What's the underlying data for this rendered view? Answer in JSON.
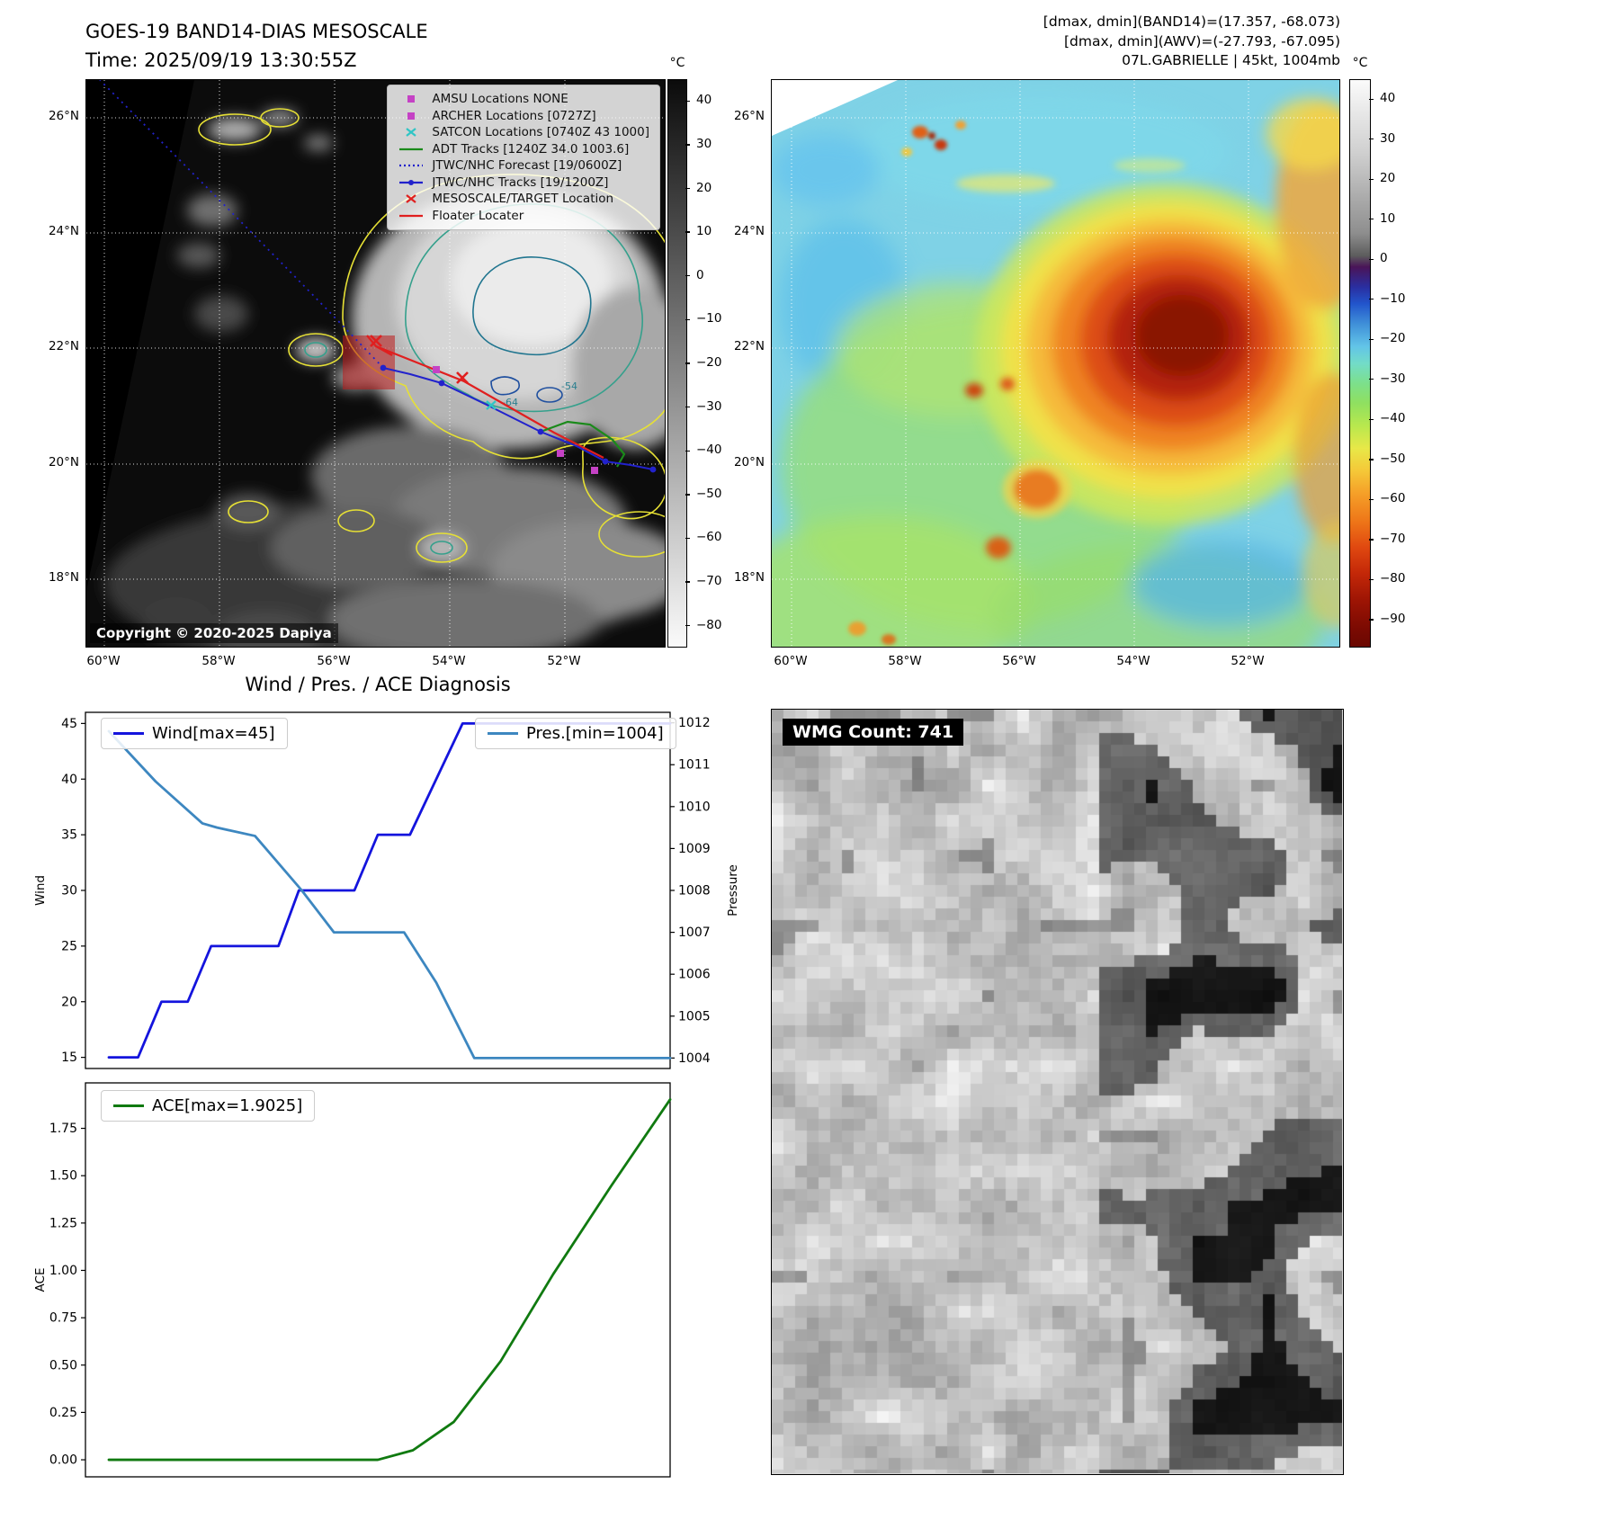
{
  "band14_panel": {
    "title": "GOES-19 BAND14-DIAS MESOSCALE",
    "time_line": "Time: 2025/09/19 13:30:55Z",
    "copyright": "Copyright © 2020-2025 Dapiya",
    "colorbar_unit": "°C",
    "colorbar_ticks": [
      "40",
      "30",
      "20",
      "10",
      "0",
      "-10",
      "-20",
      "-30",
      "-40",
      "-50",
      "-60",
      "-70",
      "-80"
    ],
    "colorbar_range": [
      45,
      -85
    ],
    "lat_ticks": [
      "26°N",
      "24°N",
      "22°N",
      "20°N",
      "18°N"
    ],
    "lon_ticks": [
      "60°W",
      "58°W",
      "56°W",
      "54°W",
      "52°W"
    ],
    "contour_labels": [
      "-64",
      "-54"
    ],
    "legend": [
      {
        "symbol": "square",
        "color": "#c542c5",
        "label": "AMSU Locations NONE"
      },
      {
        "symbol": "square",
        "color": "#c542c5",
        "label": "ARCHER Locations [0727Z]"
      },
      {
        "symbol": "x",
        "color": "#2fc5c5",
        "label": "SATCON Locations [0740Z 43 1000]"
      },
      {
        "symbol": "line",
        "color": "#1a8a1a",
        "label": "ADT Tracks [1240Z 34.0 1003.6]"
      },
      {
        "symbol": "line-dotted",
        "color": "#2222cc",
        "label": "JTWC/NHC Forecast [19/0600Z]"
      },
      {
        "symbol": "line-dot",
        "color": "#2222cc",
        "label": "JTWC/NHC Tracks [19/1200Z]"
      },
      {
        "symbol": "x",
        "color": "#e01f1f",
        "label": "MESOSCALE/TARGET Location"
      },
      {
        "symbol": "line",
        "color": "#e01f1f",
        "label": "Floater Locater"
      }
    ]
  },
  "awv_panel": {
    "info_lines": [
      "[dmax, dmin](BAND14)=(17.357, -68.073)",
      "[dmax, dmin](AWV)=(-27.793, -67.095)",
      "07L.GABRIELLE | 45kt, 1004mb"
    ],
    "colorbar_unit": "°C",
    "colorbar_ticks": [
      "40",
      "30",
      "20",
      "10",
      "0",
      "-10",
      "-20",
      "-30",
      "-40",
      "-50",
      "-60",
      "-70",
      "-80",
      "-90"
    ],
    "colorbar_range": [
      45,
      -97
    ],
    "lat_ticks": [
      "26°N",
      "24°N",
      "22°N",
      "20°N",
      "18°N"
    ],
    "lon_ticks": [
      "60°W",
      "58°W",
      "56°W",
      "54°W",
      "52°W"
    ]
  },
  "wmg_panel": {
    "label": "WMG Count: 741"
  },
  "chart_data": [
    {
      "type": "line",
      "title": "Wind / Pres. / ACE Diagnosis",
      "x_range": [
        0,
        1
      ],
      "axes": {
        "left": {
          "label": "Wind",
          "ticks": [
            "15",
            "20",
            "25",
            "30",
            "35",
            "40",
            "45"
          ],
          "range": [
            14,
            46
          ]
        },
        "right": {
          "label": "Pressure",
          "ticks": [
            "1004",
            "1005",
            "1006",
            "1007",
            "1008",
            "1009",
            "1010",
            "1011",
            "1012"
          ],
          "range": [
            1003.75,
            1012.25
          ]
        }
      },
      "series": [
        {
          "name": "Wind[max=45]",
          "axis": "left",
          "color": "#1414dd",
          "x": [
            0.04,
            0.09,
            0.13,
            0.175,
            0.215,
            0.33,
            0.365,
            0.46,
            0.5,
            0.555,
            0.645,
            1.0
          ],
          "y": [
            15,
            15,
            20,
            20,
            25,
            25,
            30,
            30,
            35,
            35,
            45,
            45
          ]
        },
        {
          "name": "Pres.[min=1004]",
          "axis": "right",
          "color": "#3d87c0",
          "x": [
            0.04,
            0.12,
            0.2,
            0.225,
            0.29,
            0.37,
            0.425,
            0.545,
            0.6,
            0.665,
            1.0
          ],
          "y": [
            1011.8,
            1010.6,
            1009.6,
            1009.5,
            1009.3,
            1008.0,
            1007.0,
            1007.0,
            1005.8,
            1004.0,
            1004.0
          ]
        }
      ]
    },
    {
      "type": "line",
      "title": "",
      "x_range": [
        0,
        1
      ],
      "axes": {
        "left": {
          "label": "ACE",
          "ticks": [
            "0.00",
            "0.25",
            "0.50",
            "0.75",
            "1.00",
            "1.25",
            "1.50",
            "1.75"
          ],
          "range": [
            -0.09,
            1.99
          ]
        }
      },
      "series": [
        {
          "name": "ACE[max=1.9025]",
          "axis": "left",
          "color": "#107a10",
          "x": [
            0.04,
            0.5,
            0.56,
            0.63,
            0.71,
            0.8,
            0.9,
            1.0
          ],
          "y": [
            0.0,
            0.0,
            0.05,
            0.2,
            0.52,
            0.98,
            1.45,
            1.9025
          ]
        }
      ]
    }
  ]
}
